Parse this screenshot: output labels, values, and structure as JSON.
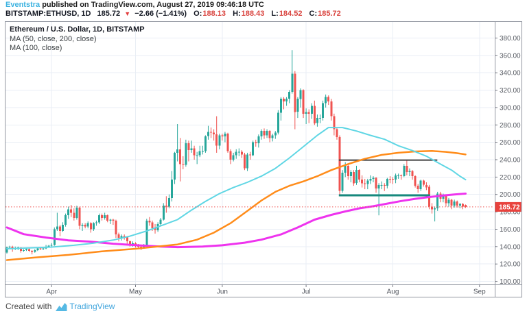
{
  "header": {
    "byline": {
      "author": "Eventstra",
      "text": " published on TradingView.com, August 27, 2019 09:46:18 UTC"
    },
    "symbol_bar": {
      "symbol": "BITSTAMP:ETHUSD, 1D",
      "last": "185.72",
      "direction": "▼",
      "change": "−2.66 (−1.41%)",
      "open_label": "O:",
      "open": "188.13",
      "high_label": "H:",
      "high": "188.43",
      "low_label": "L:",
      "low": "184.52",
      "close_label": "C:",
      "close": "185.72"
    }
  },
  "legend": {
    "title": "Ethereum / U.S. Dollar, 1D, BITSTAMP",
    "ma1": "MA (50, close, 200, close)",
    "ma2": "MA (100, close)"
  },
  "footer": {
    "created_with": "Created with",
    "brand": "TradingView"
  },
  "chart_data": {
    "type": "candlestick",
    "title": "Ethereum / U.S. Dollar, 1D, BITSTAMP",
    "symbol": "BITSTAMP:ETHUSD",
    "interval": "1D",
    "x_start_date": "2019-03-16",
    "y_min": 96.5,
    "y_max": 398.5,
    "y_ticks": [
      380,
      360,
      340,
      320,
      300,
      280,
      260,
      240,
      220,
      200,
      180,
      160,
      140,
      120,
      100
    ],
    "x_ticks": [
      {
        "label": "Apr",
        "i": 16
      },
      {
        "label": "May",
        "i": 46
      },
      {
        "label": "Jun",
        "i": 77
      },
      {
        "label": "Jul",
        "i": 107
      },
      {
        "label": "Aug",
        "i": 138
      },
      {
        "label": "Sep",
        "i": 169
      }
    ],
    "last_price": 185.72,
    "colors": {
      "up": "#26a69a",
      "down": "#ef5350",
      "grid": "#e9eef5",
      "frame": "#90949e",
      "axis_text": "#52565e",
      "last_price_line": "#ef5350",
      "last_price_bg": "#e8423d",
      "ma50": "#5fd6e4",
      "ma100": "#ff8c1a",
      "ma200": "#ee33ee",
      "drawing_dark": "#424242",
      "drawing_teal": "#17897d"
    },
    "candles": [
      [
        133,
        140,
        132,
        139
      ],
      [
        139,
        141,
        137,
        140
      ],
      [
        140,
        141,
        134,
        137
      ],
      [
        137,
        140,
        136,
        138
      ],
      [
        138,
        140,
        136,
        139
      ],
      [
        139,
        139,
        133,
        135
      ],
      [
        135,
        137,
        134,
        136
      ],
      [
        136,
        138,
        135,
        137
      ],
      [
        137,
        138,
        134,
        135
      ],
      [
        135,
        136,
        131,
        134
      ],
      [
        134,
        137,
        133,
        136
      ],
      [
        136,
        139,
        135,
        138
      ],
      [
        138,
        139,
        136,
        137
      ],
      [
        137,
        139,
        136,
        138
      ],
      [
        138,
        142,
        137,
        140
      ],
      [
        140,
        142,
        139,
        141
      ],
      [
        141,
        144,
        140,
        142
      ],
      [
        142,
        162,
        141,
        160
      ],
      [
        160,
        179,
        158,
        163
      ],
      [
        163,
        165,
        152,
        158
      ],
      [
        158,
        168,
        157,
        165
      ],
      [
        165,
        178,
        163,
        176
      ],
      [
        176,
        186,
        172,
        183
      ],
      [
        183,
        188,
        174,
        179
      ],
      [
        179,
        184,
        170,
        173
      ],
      [
        173,
        187,
        171,
        185
      ],
      [
        185,
        186,
        160,
        164
      ],
      [
        164,
        167,
        158,
        165
      ],
      [
        165,
        167,
        161,
        163
      ],
      [
        163,
        169,
        161,
        167
      ],
      [
        167,
        168,
        156,
        160
      ],
      [
        160,
        168,
        158,
        167
      ],
      [
        167,
        170,
        164,
        168
      ],
      [
        168,
        178,
        166,
        176
      ],
      [
        176,
        178,
        170,
        173
      ],
      [
        173,
        179,
        171,
        176
      ],
      [
        176,
        177,
        168,
        170
      ],
      [
        170,
        172,
        166,
        171
      ],
      [
        171,
        172,
        165,
        170
      ],
      [
        170,
        171,
        150,
        154
      ],
      [
        154,
        156,
        146,
        150
      ],
      [
        150,
        154,
        147,
        152
      ],
      [
        152,
        154,
        148,
        151
      ],
      [
        151,
        152,
        143,
        146
      ],
      [
        146,
        147,
        140,
        142
      ],
      [
        142,
        146,
        140,
        144
      ],
      [
        144,
        145,
        139,
        141
      ],
      [
        141,
        143,
        138,
        140
      ],
      [
        140,
        142,
        136,
        139
      ],
      [
        139,
        143,
        138,
        142
      ],
      [
        142,
        172,
        141,
        170
      ],
      [
        170,
        174,
        164,
        168
      ],
      [
        168,
        170,
        158,
        161
      ],
      [
        161,
        166,
        155,
        159
      ],
      [
        159,
        168,
        157,
        166
      ],
      [
        166,
        173,
        164,
        171
      ],
      [
        171,
        190,
        170,
        187
      ],
      [
        187,
        198,
        179,
        186
      ],
      [
        186,
        200,
        184,
        196
      ],
      [
        196,
        227,
        192,
        217
      ],
      [
        217,
        249,
        212,
        248
      ],
      [
        248,
        281,
        238,
        252
      ],
      [
        252,
        265,
        215,
        235
      ],
      [
        235,
        244,
        229,
        234
      ],
      [
        234,
        263,
        232,
        259
      ],
      [
        259,
        262,
        238,
        251
      ],
      [
        251,
        262,
        248,
        253
      ],
      [
        253,
        256,
        240,
        245
      ],
      [
        245,
        249,
        235,
        245
      ],
      [
        245,
        256,
        243,
        250
      ],
      [
        250,
        256,
        246,
        250
      ],
      [
        250,
        268,
        248,
        267
      ],
      [
        267,
        279,
        263,
        272
      ],
      [
        272,
        277,
        265,
        271
      ],
      [
        271,
        275,
        262,
        269
      ],
      [
        269,
        290,
        248,
        256
      ],
      [
        256,
        270,
        252,
        268
      ],
      [
        268,
        270,
        262,
        267
      ],
      [
        267,
        272,
        260,
        270
      ],
      [
        270,
        271,
        248,
        250
      ],
      [
        250,
        252,
        235,
        240
      ],
      [
        240,
        248,
        238,
        245
      ],
      [
        245,
        252,
        241,
        249
      ],
      [
        249,
        253,
        244,
        249
      ],
      [
        249,
        251,
        242,
        246
      ],
      [
        246,
        248,
        228,
        230
      ],
      [
        230,
        248,
        227,
        246
      ],
      [
        246,
        249,
        240,
        245
      ],
      [
        245,
        262,
        244,
        260
      ],
      [
        260,
        263,
        255,
        259
      ],
      [
        259,
        269,
        254,
        267
      ],
      [
        267,
        275,
        263,
        273
      ],
      [
        273,
        276,
        264,
        268
      ],
      [
        268,
        275,
        265,
        273
      ],
      [
        273,
        274,
        260,
        265
      ],
      [
        265,
        270,
        261,
        268
      ],
      [
        268,
        273,
        264,
        271
      ],
      [
        271,
        297,
        269,
        294
      ],
      [
        294,
        312,
        285,
        310
      ],
      [
        310,
        312,
        298,
        307
      ],
      [
        307,
        312,
        302,
        310
      ],
      [
        310,
        320,
        305,
        318
      ],
      [
        318,
        366,
        316,
        339
      ],
      [
        339,
        342,
        275,
        295
      ],
      [
        295,
        312,
        288,
        310
      ],
      [
        310,
        322,
        300,
        320
      ],
      [
        320,
        321,
        288,
        293
      ],
      [
        293,
        299,
        281,
        295
      ],
      [
        295,
        298,
        282,
        293
      ],
      [
        293,
        305,
        287,
        302
      ],
      [
        302,
        308,
        280,
        282
      ],
      [
        282,
        292,
        278,
        288
      ],
      [
        288,
        292,
        282,
        288
      ],
      [
        288,
        308,
        285,
        305
      ],
      [
        305,
        315,
        300,
        312
      ],
      [
        312,
        314,
        303,
        307
      ],
      [
        307,
        310,
        285,
        290
      ],
      [
        290,
        293,
        268,
        275
      ],
      [
        275,
        277,
        263,
        266
      ],
      [
        266,
        268,
        199,
        204
      ],
      [
        204,
        228,
        202,
        225
      ],
      [
        225,
        237,
        220,
        233
      ],
      [
        233,
        235,
        217,
        221
      ],
      [
        221,
        228,
        214,
        226
      ],
      [
        226,
        228,
        210,
        213
      ],
      [
        213,
        233,
        211,
        228
      ],
      [
        228,
        229,
        214,
        217
      ],
      [
        217,
        222,
        208,
        213
      ],
      [
        213,
        218,
        206,
        212
      ],
      [
        212,
        218,
        206,
        216
      ],
      [
        216,
        222,
        212,
        218
      ],
      [
        218,
        221,
        214,
        219
      ],
      [
        219,
        220,
        202,
        207
      ],
      [
        207,
        213,
        176,
        211
      ],
      [
        211,
        215,
        206,
        211
      ],
      [
        211,
        213,
        204,
        210
      ],
      [
        210,
        219,
        207,
        218
      ],
      [
        218,
        221,
        213,
        217
      ],
      [
        218,
        220,
        212,
        217
      ],
      [
        217,
        224,
        213,
        222
      ],
      [
        222,
        224,
        218,
        222
      ],
      [
        222,
        223,
        217,
        221
      ],
      [
        221,
        235,
        220,
        233
      ],
      [
        233,
        240,
        222,
        226
      ],
      [
        226,
        230,
        221,
        227
      ],
      [
        227,
        228,
        217,
        221
      ],
      [
        221,
        222,
        208,
        210
      ],
      [
        210,
        212,
        202,
        206
      ],
      [
        206,
        217,
        204,
        216
      ],
      [
        216,
        217,
        209,
        211
      ],
      [
        211,
        214,
        205,
        208
      ],
      [
        209,
        211,
        183,
        186
      ],
      [
        186,
        190,
        178,
        183
      ],
      [
        183,
        186,
        169,
        184
      ],
      [
        184,
        203,
        181,
        201
      ],
      [
        201,
        203,
        191,
        195
      ],
      [
        195,
        201,
        191,
        199
      ],
      [
        199,
        200,
        186,
        190
      ],
      [
        190,
        196,
        186,
        194
      ],
      [
        194,
        195,
        183,
        187
      ],
      [
        187,
        194,
        185,
        192
      ],
      [
        192,
        193,
        185,
        187
      ],
      [
        187,
        190,
        184,
        189
      ],
      [
        189,
        190,
        183,
        186
      ],
      [
        188.13,
        188.43,
        184.52,
        185.72
      ]
    ],
    "ma_lines": [
      {
        "name": "MA 200",
        "color_key": "ma200",
        "width": 3,
        "points": [
          [
            0,
            162
          ],
          [
            6,
            154.3
          ],
          [
            14,
            150.4
          ],
          [
            22,
            147.2
          ],
          [
            30,
            145.7
          ],
          [
            38,
            143.3
          ],
          [
            46,
            141.7
          ],
          [
            55,
            140.1
          ],
          [
            61,
            139.4
          ],
          [
            70,
            140
          ],
          [
            77,
            141.5
          ],
          [
            85,
            144.5
          ],
          [
            91,
            148
          ],
          [
            98,
            154
          ],
          [
            104,
            162
          ],
          [
            110,
            171
          ],
          [
            116,
            176.5
          ],
          [
            121,
            180.5
          ],
          [
            126,
            184
          ],
          [
            131,
            186.5
          ],
          [
            136,
            189.5
          ],
          [
            141,
            192.5
          ],
          [
            146,
            195
          ],
          [
            151,
            197
          ],
          [
            156,
            198.8
          ],
          [
            160,
            200
          ],
          [
            164,
            201
          ]
        ]
      },
      {
        "name": "MA 100",
        "color_key": "ma100",
        "width": 2.5,
        "points": [
          [
            0,
            124.5
          ],
          [
            10,
            127.5
          ],
          [
            22,
            130.5
          ],
          [
            34,
            134.5
          ],
          [
            46,
            137.5
          ],
          [
            55,
            140.5
          ],
          [
            61,
            142.5
          ],
          [
            68,
            148
          ],
          [
            74,
            156
          ],
          [
            80,
            167
          ],
          [
            86,
            181
          ],
          [
            91,
            193
          ],
          [
            96,
            203
          ],
          [
            101,
            210
          ],
          [
            106,
            215
          ],
          [
            111,
            221
          ],
          [
            116,
            228
          ],
          [
            122,
            235
          ],
          [
            128,
            241
          ],
          [
            134,
            245.5
          ],
          [
            140,
            248
          ],
          [
            146,
            249.5
          ],
          [
            152,
            250
          ],
          [
            157,
            249
          ],
          [
            161,
            247.5
          ],
          [
            164,
            246
          ]
        ]
      },
      {
        "name": "MA 50",
        "color_key": "ma50",
        "width": 2,
        "points": [
          [
            0,
            137.5
          ],
          [
            8,
            138.5
          ],
          [
            16,
            139.5
          ],
          [
            24,
            141.5
          ],
          [
            31,
            144
          ],
          [
            38,
            147.5
          ],
          [
            44,
            152
          ],
          [
            50,
            158
          ],
          [
            56,
            165
          ],
          [
            61,
            171
          ],
          [
            66,
            182
          ],
          [
            71,
            192
          ],
          [
            76,
            201
          ],
          [
            81,
            208
          ],
          [
            86,
            214
          ],
          [
            91,
            221
          ],
          [
            96,
            230
          ],
          [
            101,
            242
          ],
          [
            106,
            255
          ],
          [
            111,
            268
          ],
          [
            115,
            277
          ],
          [
            120,
            277
          ],
          [
            125,
            273
          ],
          [
            130,
            268
          ],
          [
            135,
            263.5
          ],
          [
            140,
            256
          ],
          [
            145,
            250.5
          ],
          [
            150,
            244
          ],
          [
            155,
            235
          ],
          [
            159,
            228
          ],
          [
            162,
            221
          ],
          [
            164,
            217
          ]
        ]
      }
    ],
    "drawings": [
      {
        "type": "hline_segment",
        "color_key": "drawing_dark",
        "width": 2,
        "from_i": 118.7,
        "to_i": 153.9,
        "price": 239.5
      },
      {
        "type": "hline_segment",
        "color_key": "drawing_teal",
        "width": 3,
        "from_i": 118.7,
        "to_i": 151.3,
        "price": 199
      }
    ]
  }
}
